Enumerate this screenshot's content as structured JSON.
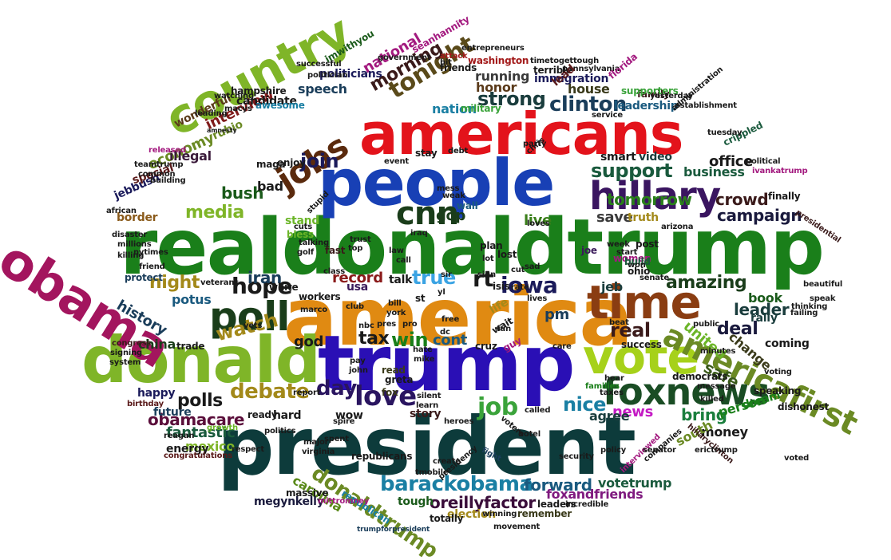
{
  "words": [
    {
      "text": "realdonaldtrump",
      "color": "#1a7f1a"
    },
    {
      "text": "president",
      "color": "#0d3b3b"
    },
    {
      "text": "america",
      "color": "#e08a12"
    },
    {
      "text": "trump",
      "color": "#2a0fb5"
    },
    {
      "text": "people",
      "color": "#1840b5"
    },
    {
      "text": "americans",
      "color": "#e3131b"
    },
    {
      "text": "donald",
      "color": "#7fb528"
    },
    {
      "text": "obama",
      "color": "#a3155e"
    },
    {
      "text": "country",
      "color": "#7fb528"
    },
    {
      "text": "vote",
      "color": "#a6d11a"
    },
    {
      "text": "time",
      "color": "#8a3d12"
    },
    {
      "text": "hillary",
      "color": "#3a1560"
    },
    {
      "text": "foxnews",
      "color": "#1a4d24"
    },
    {
      "text": "americafirst",
      "color": "#6b8a24"
    },
    {
      "text": "poll",
      "color": "#1a3d1a"
    },
    {
      "text": "jobs",
      "color": "#5a2a0d"
    },
    {
      "text": "cnn",
      "color": "#1a3d1a"
    },
    {
      "text": "love",
      "color": "#2a1560"
    },
    {
      "text": "day",
      "color": "#2a1560"
    },
    {
      "text": "debate",
      "color": "#a3891a"
    },
    {
      "text": "job",
      "color": "#3aa33a"
    },
    {
      "text": "donaldtrump",
      "color": "#6b8a24"
    },
    {
      "text": "barackobama",
      "color": "#1a7fa3"
    },
    {
      "text": "tonight",
      "color": "#5a4a1a"
    },
    {
      "text": "iowa",
      "color": "#1a1a5a"
    },
    {
      "text": "hope",
      "color": "#1a1a1a"
    },
    {
      "text": "true",
      "color": "#3aa3e3"
    },
    {
      "text": "rt",
      "color": "#1a1a1a"
    },
    {
      "text": "win",
      "color": "#1a7f1a"
    },
    {
      "text": "tax",
      "color": "#1a1a1a"
    },
    {
      "text": "watch",
      "color": "#a3891a"
    },
    {
      "text": "join",
      "color": "#1a1a5a"
    },
    {
      "text": "clinton",
      "color": "#1a3d5a"
    },
    {
      "text": "strong",
      "color": "#1a3d3d"
    },
    {
      "text": "morning",
      "color": "#3a1a1a"
    },
    {
      "text": "support",
      "color": "#1a5a3d"
    },
    {
      "text": "tomorrow",
      "color": "#2a7f1a"
    },
    {
      "text": "media",
      "color": "#7fb528"
    },
    {
      "text": "night",
      "color": "#a3891a"
    },
    {
      "text": "polls",
      "color": "#1a1a1a"
    },
    {
      "text": "oreillyfactor",
      "color": "#3a0d3a"
    },
    {
      "text": "forward",
      "color": "#1a5a7f"
    },
    {
      "text": "nice",
      "color": "#1a7fa3"
    },
    {
      "text": "amazing",
      "color": "#1a3d1a"
    },
    {
      "text": "deal",
      "color": "#1a1a3d"
    },
    {
      "text": "real",
      "color": "#3a1a1a"
    },
    {
      "text": "safe",
      "color": "#3a5a1a"
    },
    {
      "text": "record",
      "color": "#8a1a1a"
    },
    {
      "text": "news",
      "color": "#c41ac4"
    },
    {
      "text": "bring",
      "color": "#1a7f3d"
    },
    {
      "text": "crowd",
      "color": "#3a1a1a"
    },
    {
      "text": "campaign",
      "color": "#1a1a3d"
    },
    {
      "text": "obamacare",
      "color": "#5a0d3a"
    },
    {
      "text": "fantastic",
      "color": "#1a5a3d"
    },
    {
      "text": "leader",
      "color": "#1a3d3d"
    },
    {
      "text": "history",
      "color": "#1a3d5a"
    },
    {
      "text": "bush",
      "color": "#1a5a1a"
    },
    {
      "text": "economy",
      "color": "#6b8a24"
    },
    {
      "text": "interview",
      "color": "#7f1a1a"
    },
    {
      "text": "national",
      "color": "#a31a7f"
    },
    {
      "text": "immigration",
      "color": "#1a1a5a"
    },
    {
      "text": "leadership",
      "color": "#1a5a7f"
    },
    {
      "text": "running",
      "color": "#3a3a3a"
    },
    {
      "text": "honor",
      "color": "#5a3a1a"
    },
    {
      "text": "nation",
      "color": "#1a7fa3"
    },
    {
      "text": "speech",
      "color": "#1a3d5a"
    },
    {
      "text": "politicians",
      "color": "#1a1a5a"
    },
    {
      "text": "candidate",
      "color": "#1a1a1a"
    },
    {
      "text": "hampshire",
      "color": "#1a1a1a"
    },
    {
      "text": "house",
      "color": "#3a3a1a"
    },
    {
      "text": "family",
      "color": "#3a1a1a"
    },
    {
      "text": "office",
      "color": "#1a1a1a"
    },
    {
      "text": "business",
      "color": "#1a5a3d"
    },
    {
      "text": "smart",
      "color": "#1a1a1a"
    },
    {
      "text": "video",
      "color": "#1a3d3d"
    },
    {
      "text": "united",
      "color": "#6bb528"
    },
    {
      "text": "book",
      "color": "#1a5a1a"
    },
    {
      "text": "money",
      "color": "#1a1a1a"
    },
    {
      "text": "person",
      "color": "#1a7f1a"
    },
    {
      "text": "south",
      "color": "#6b8a24"
    },
    {
      "text": "carolina",
      "color": "#5a8a1a"
    },
    {
      "text": "votetrump",
      "color": "#1a5a3d"
    },
    {
      "text": "foxandfriends",
      "color": "#7f1a7f"
    },
    {
      "text": "megynkelly",
      "color": "#1a1a3d"
    },
    {
      "text": "republicans",
      "color": "#1a1a1a"
    },
    {
      "text": "mexico",
      "color": "#7fb528"
    },
    {
      "text": "happy",
      "color": "#1a1a5a"
    },
    {
      "text": "usa",
      "color": "#3a1a5a"
    },
    {
      "text": "gop",
      "color": "#1a3d1a"
    },
    {
      "text": "iran",
      "color": "#1a3d5a"
    },
    {
      "text": "jeb",
      "color": "#1a3d3d"
    },
    {
      "text": "potus",
      "color": "#1a5a7f"
    },
    {
      "text": "pm",
      "color": "#1a3d5a"
    },
    {
      "text": "live",
      "color": "#3a7f1a"
    },
    {
      "text": "cont",
      "color": "#1a5a7f"
    },
    {
      "text": "god",
      "color": "#1a1a1a"
    },
    {
      "text": "china",
      "color": "#1a3d1a"
    },
    {
      "text": "border",
      "color": "#8a5a1a"
    },
    {
      "text": "save",
      "color": "#3a3a3a"
    },
    {
      "text": "truth",
      "color": "#a3891a"
    },
    {
      "text": "hard",
      "color": "#1a1a1a"
    },
    {
      "text": "agree",
      "color": "#1a3d3d"
    },
    {
      "text": "wow",
      "color": "#1a1a1a"
    },
    {
      "text": "story",
      "color": "#3a1a1a"
    },
    {
      "text": "tough",
      "color": "#1a5a1a"
    },
    {
      "text": "election",
      "color": "#a3891a"
    },
    {
      "text": "totally",
      "color": "#1a1a1a"
    },
    {
      "text": "remember",
      "color": "#3a3a1a"
    },
    {
      "text": "leaders",
      "color": "#1a1a1a"
    },
    {
      "text": "fox",
      "color": "#3a3a1a"
    },
    {
      "text": "dream",
      "color": "#1a7f1a"
    },
    {
      "text": "change",
      "color": "#3a3a1a"
    },
    {
      "text": "coming",
      "color": "#1a1a1a"
    },
    {
      "text": "rally",
      "color": "#1a3d3d"
    },
    {
      "text": "democrats",
      "color": "#1a1a1a"
    },
    {
      "text": "white",
      "color": "#1a1a1a"
    },
    {
      "text": "talk",
      "color": "#1a1a1a"
    },
    {
      "text": "stand",
      "color": "#6bb528"
    },
    {
      "text": "illegal",
      "color": "#3a1a3a"
    },
    {
      "text": "wonderful",
      "color": "#5a3a1a"
    },
    {
      "text": "rubio",
      "color": "#6b8a24"
    },
    {
      "text": "jebbush",
      "color": "#1a1a5a"
    },
    {
      "text": "teamtrump",
      "color": "#1a1a1a"
    },
    {
      "text": "special",
      "color": "#5a1a1a"
    },
    {
      "text": "released",
      "color": "#a31a7f"
    },
    {
      "text": "african",
      "color": "#1a1a1a"
    },
    {
      "text": "future",
      "color": "#1a3d5a"
    },
    {
      "text": "energy",
      "color": "#1a1a1a"
    },
    {
      "text": "congratulations",
      "color": "#5a1a1a"
    },
    {
      "text": "congress",
      "color": "#3a1a1a"
    },
    {
      "text": "signing",
      "color": "#1a1a1a"
    },
    {
      "text": "system",
      "color": "#1a1a1a"
    },
    {
      "text": "reagan",
      "color": "#1a1a1a"
    },
    {
      "text": "protect",
      "color": "#1a3d5a"
    },
    {
      "text": "millions",
      "color": "#1a1a1a"
    },
    {
      "text": "killing",
      "color": "#1a1a1a"
    },
    {
      "text": "disaster",
      "color": "#1a1a1a"
    },
    {
      "text": "friend",
      "color": "#1a1a1a"
    },
    {
      "text": "maga",
      "color": "#1a1a1a"
    },
    {
      "text": "enjoy",
      "color": "#1a1a1a"
    },
    {
      "text": "bless",
      "color": "#6bb528"
    },
    {
      "text": "bad",
      "color": "#1a1a1a"
    },
    {
      "text": "fast",
      "color": "#3a1a1a"
    },
    {
      "text": "wall",
      "color": "#1a5a7f"
    },
    {
      "text": "plan",
      "color": "#1a1a1a"
    },
    {
      "text": "lost",
      "color": "#1a1a1a"
    },
    {
      "text": "joe",
      "color": "#3a1a5a"
    },
    {
      "text": "women",
      "color": "#a31a7f"
    },
    {
      "text": "ohio",
      "color": "#1a1a1a"
    },
    {
      "text": "build",
      "color": "#1a5a3d"
    },
    {
      "text": "post",
      "color": "#1a1a1a"
    },
    {
      "text": "start",
      "color": "#1a1a1a"
    },
    {
      "text": "workers",
      "color": "#1a1a1a"
    },
    {
      "text": "st",
      "color": "#1a1a1a"
    },
    {
      "text": "isis",
      "color": "#1a1a1a"
    },
    {
      "text": "rate",
      "color": "#1a1a1a"
    },
    {
      "text": "life",
      "color": "#a3891a"
    },
    {
      "text": "cruz",
      "color": "#1a1a1a"
    },
    {
      "text": "guy",
      "color": "#a31a7f"
    },
    {
      "text": "hear",
      "color": "#1a1a1a"
    },
    {
      "text": "families",
      "color": "#1a7f1a"
    },
    {
      "text": "success",
      "color": "#1a1a1a"
    },
    {
      "text": "security",
      "color": "#1a1a1a"
    },
    {
      "text": "fight",
      "color": "#1a3d5a"
    },
    {
      "text": "read",
      "color": "#3a3a1a"
    },
    {
      "text": "report",
      "color": "#1a1a1a"
    },
    {
      "text": "ready",
      "color": "#1a1a1a"
    },
    {
      "text": "growth",
      "color": "#6bb528"
    },
    {
      "text": "birthday",
      "color": "#5a1a1a"
    },
    {
      "text": "massive",
      "color": "#1a1a1a"
    },
    {
      "text": "virginia",
      "color": "#1a1a1a"
    },
    {
      "text": "republican",
      "color": "#1a7fa3"
    },
    {
      "text": "mittromney",
      "color": "#a31a7f"
    },
    {
      "text": "trumpforpresident",
      "color": "#1a3d5a"
    },
    {
      "text": "winning",
      "color": "#1a1a1a"
    },
    {
      "text": "movement",
      "color": "#1a1a1a"
    },
    {
      "text": "incredible",
      "color": "#1a1a1a"
    },
    {
      "text": "interviewed",
      "color": "#a31a7f"
    },
    {
      "text": "dishonest",
      "color": "#1a1a1a"
    },
    {
      "text": "speaking",
      "color": "#1a1a1a"
    },
    {
      "text": "beautiful",
      "color": "#1a1a1a"
    },
    {
      "text": "presidential",
      "color": "#3a1a1a"
    },
    {
      "text": "finally",
      "color": "#1a1a1a"
    },
    {
      "text": "ivankatrump",
      "color": "#a31a7f"
    },
    {
      "text": "political",
      "color": "#1a1a1a"
    },
    {
      "text": "crippled",
      "color": "#1a5a3d"
    },
    {
      "text": "tuesday",
      "color": "#1a1a1a"
    },
    {
      "text": "establishment",
      "color": "#1a1a1a"
    },
    {
      "text": "supporters",
      "color": "#3aa33a"
    },
    {
      "text": "yesterday",
      "color": "#1a1a1a"
    },
    {
      "text": "pennsylvania",
      "color": "#1a1a1a"
    },
    {
      "text": "florida",
      "color": "#a31a7f"
    },
    {
      "text": "terrible",
      "color": "#1a1a1a"
    },
    {
      "text": "lead",
      "color": "#5a1a1a"
    },
    {
      "text": "washington",
      "color": "#a31a1a"
    },
    {
      "text": "friends",
      "color": "#1a1a1a"
    },
    {
      "text": "hit",
      "color": "#1a1a1a"
    },
    {
      "text": "attack",
      "color": "#a31a1a"
    },
    {
      "text": "seanhannity",
      "color": "#a31a7f"
    },
    {
      "text": "entrepreneurs",
      "color": "#1a1a1a"
    },
    {
      "text": "government",
      "color": "#1a1a1a"
    },
    {
      "text": "successful",
      "color": "#1a1a1a"
    },
    {
      "text": "imwithyou",
      "color": "#1a5a1a"
    },
    {
      "text": "politician",
      "color": "#1a1a1a"
    },
    {
      "text": "awesome",
      "color": "#1a7fa3"
    },
    {
      "text": "amnesty",
      "color": "#1a1a1a"
    },
    {
      "text": "building",
      "color": "#1a1a1a"
    },
    {
      "text": "message",
      "color": "#1a1a1a"
    },
    {
      "text": "killed",
      "color": "#1a1a1a"
    },
    {
      "text": "hillaryclinton",
      "color": "#3a1a1a"
    },
    {
      "text": "erictrump",
      "color": "#1a1a1a"
    },
    {
      "text": "administration",
      "color": "#1a1a1a"
    },
    {
      "text": "military",
      "color": "#3aa33a"
    },
    {
      "text": "respect",
      "color": "#1a1a1a"
    },
    {
      "text": "politics",
      "color": "#1a1a1a"
    },
    {
      "text": "spent",
      "color": "#1a1a1a"
    },
    {
      "text": "major",
      "color": "#1a1a1a"
    },
    {
      "text": "voters",
      "color": "#1a1a1a"
    },
    {
      "text": "hotel",
      "color": "#1a1a1a"
    },
    {
      "text": "called",
      "color": "#1a1a1a"
    },
    {
      "text": "policy",
      "color": "#1a1a1a"
    },
    {
      "text": "silent",
      "color": "#1a1a1a"
    },
    {
      "text": "nytimes",
      "color": "#1a1a1a"
    },
    {
      "text": "vets",
      "color": "#1a1a1a"
    },
    {
      "text": "minutes",
      "color": "#1a1a1a"
    },
    {
      "text": "failing",
      "color": "#1a1a1a"
    },
    {
      "text": "speak",
      "color": "#1a1a1a"
    },
    {
      "text": "trade",
      "color": "#1a1a1a"
    },
    {
      "text": "veterans",
      "color": "#1a1a1a"
    },
    {
      "text": "stupid",
      "color": "#1a1a1a"
    },
    {
      "text": "greta",
      "color": "#1a1a1a"
    },
    {
      "text": "john",
      "color": "#1a1a1a"
    },
    {
      "text": "pay",
      "color": "#1a1a1a"
    },
    {
      "text": "timetogettough",
      "color": "#1a1a1a"
    },
    {
      "text": "mess",
      "color": "#1a1a1a"
    },
    {
      "text": "weak",
      "color": "#1a1a1a"
    },
    {
      "text": "stay",
      "color": "#1a1a1a"
    },
    {
      "text": "event",
      "color": "#1a1a1a"
    },
    {
      "text": "debt",
      "color": "#1a1a1a"
    },
    {
      "text": "party",
      "color": "#1a1a1a"
    },
    {
      "text": "loves",
      "color": "#1a1a1a"
    },
    {
      "text": "top",
      "color": "#1a1a1a"
    },
    {
      "text": "trust",
      "color": "#1a1a1a"
    },
    {
      "text": "call",
      "color": "#1a1a1a"
    },
    {
      "text": "law",
      "color": "#1a1a1a"
    },
    {
      "text": "class",
      "color": "#1a1a1a"
    },
    {
      "text": "golf",
      "color": "#1a1a1a"
    },
    {
      "text": "sir",
      "color": "#1a1a1a"
    },
    {
      "text": "bill",
      "color": "#1a1a1a"
    },
    {
      "text": "club",
      "color": "#1a1a1a"
    },
    {
      "text": "nbc",
      "color": "#1a1a1a"
    },
    {
      "text": "free",
      "color": "#1a1a1a"
    },
    {
      "text": "hate",
      "color": "#1a1a1a"
    },
    {
      "text": "mike",
      "color": "#1a1a1a"
    },
    {
      "text": "tmobile",
      "color": "#1a1a1a"
    },
    {
      "text": "create",
      "color": "#1a1a1a"
    },
    {
      "text": "presidency",
      "color": "#1a1a1a"
    },
    {
      "text": "sad",
      "color": "#1a1a1a"
    },
    {
      "text": "chris",
      "color": "#1a1a1a"
    },
    {
      "text": "week",
      "color": "#1a1a1a"
    },
    {
      "text": "arizona",
      "color": "#1a1a1a"
    },
    {
      "text": "iraq",
      "color": "#1a1a1a"
    },
    {
      "text": "leading",
      "color": "#1a1a1a"
    },
    {
      "text": "service",
      "color": "#1a1a1a"
    },
    {
      "text": "watching",
      "color": "#1a1a1a"
    },
    {
      "text": "macys",
      "color": "#1a1a1a"
    },
    {
      "text": "common",
      "color": "#1a1a1a"
    },
    {
      "text": "cuts",
      "color": "#1a1a1a"
    },
    {
      "text": "fun",
      "color": "#1a1a1a"
    },
    {
      "text": "lot",
      "color": "#1a1a1a"
    },
    {
      "text": "care",
      "color": "#1a1a1a"
    },
    {
      "text": "beat",
      "color": "#1a1a1a"
    },
    {
      "text": "public",
      "color": "#1a1a1a"
    },
    {
      "text": "companies",
      "color": "#1a1a1a"
    },
    {
      "text": "voting",
      "color": "#1a1a1a"
    },
    {
      "text": "voted",
      "color": "#1a1a1a"
    },
    {
      "text": "won",
      "color": "#1a1a1a"
    },
    {
      "text": "senate",
      "color": "#1a1a1a"
    },
    {
      "text": "thinking",
      "color": "#1a1a1a"
    },
    {
      "text": "learn",
      "color": "#1a1a1a"
    },
    {
      "text": "talking",
      "color": "#1a1a1a"
    },
    {
      "text": "lives",
      "color": "#1a1a1a"
    },
    {
      "text": "taxes",
      "color": "#1a1a1a"
    },
    {
      "text": "york",
      "color": "#1a1a1a"
    },
    {
      "text": "pres",
      "color": "#1a1a1a"
    },
    {
      "text": "pro",
      "color": "#1a1a1a"
    },
    {
      "text": "sign",
      "color": "#1a1a1a"
    },
    {
      "text": "cut",
      "color": "#1a1a1a"
    },
    {
      "text": "yl",
      "color": "#1a1a1a"
    },
    {
      "text": "dc",
      "color": "#1a1a1a"
    },
    {
      "text": "spire",
      "color": "#1a1a1a"
    },
    {
      "text": "heroes",
      "color": "#1a1a1a"
    },
    {
      "text": "marco",
      "color": "#1a1a1a"
    },
    {
      "text": "wait",
      "color": "#1a1a1a"
    },
    {
      "text": "senator",
      "color": "#1a1a1a"
    }
  ]
}
